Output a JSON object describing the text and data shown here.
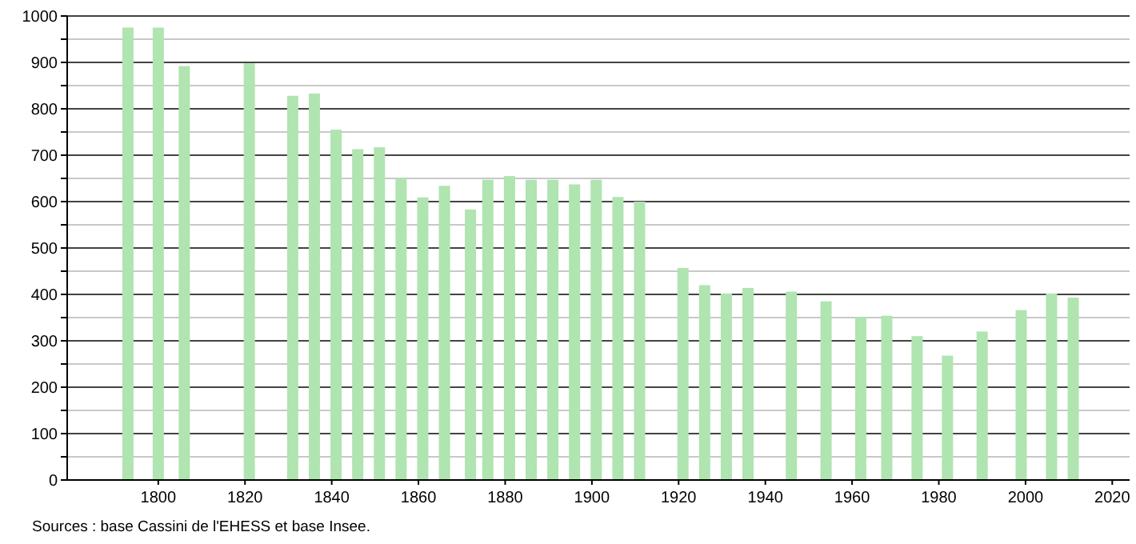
{
  "chart_data": {
    "type": "bar",
    "x": [
      1793,
      1800,
      1806,
      1821,
      1831,
      1836,
      1841,
      1846,
      1851,
      1856,
      1861,
      1866,
      1872,
      1876,
      1881,
      1886,
      1891,
      1896,
      1901,
      1906,
      1911,
      1921,
      1926,
      1931,
      1936,
      1946,
      1954,
      1962,
      1968,
      1975,
      1982,
      1990,
      1999,
      2006,
      2011
    ],
    "values": [
      975,
      975,
      892,
      898,
      828,
      833,
      755,
      713,
      717,
      651,
      609,
      634,
      583,
      647,
      655,
      647,
      647,
      637,
      647,
      610,
      600,
      457,
      420,
      402,
      414,
      406,
      385,
      351,
      354,
      310,
      268,
      320,
      366,
      402,
      393
    ],
    "color": "#b0e4b0",
    "xlim": [
      1779,
      2024
    ],
    "xticks": [
      1800,
      1820,
      1840,
      1860,
      1880,
      1900,
      1920,
      1940,
      1960,
      1980,
      2000,
      2020
    ],
    "ylim": [
      0,
      1000
    ],
    "yticks": [
      0,
      {
        "value": 50,
        "label": null
      },
      100,
      {
        "value": 150,
        "label": null
      },
      200,
      {
        "value": 250,
        "label": null
      },
      300,
      {
        "value": 350,
        "label": null
      },
      400,
      {
        "value": 450,
        "label": null
      },
      500,
      {
        "value": 550,
        "label": null
      },
      600,
      {
        "value": 650,
        "label": null
      },
      700,
      {
        "value": 750,
        "label": null
      },
      800,
      {
        "value": 850,
        "label": null
      },
      900,
      {
        "value": 950,
        "label": null
      },
      1000
    ],
    "grid": "y",
    "annotations": [
      "Sources : base Cassini de l'EHESS et base Insee."
    ]
  }
}
